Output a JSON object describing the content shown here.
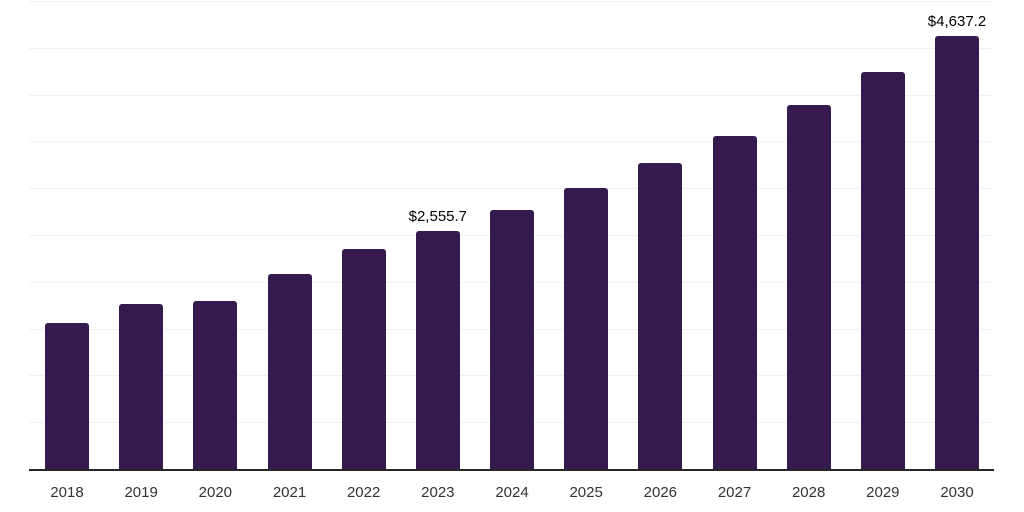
{
  "chart_data": {
    "type": "bar",
    "title": "",
    "xlabel": "",
    "ylabel": "",
    "categories": [
      "2018",
      "2019",
      "2020",
      "2021",
      "2022",
      "2023",
      "2024",
      "2025",
      "2026",
      "2027",
      "2028",
      "2029",
      "2030"
    ],
    "values": [
      1570,
      1775,
      1806,
      2094,
      2360,
      2555.7,
      2778,
      3016,
      3277,
      3569,
      3896,
      4256,
      4637.2
    ],
    "data_labels": [
      "",
      "",
      "",
      "",
      "",
      "$2,555.7",
      "",
      "",
      "",
      "",
      "",
      "",
      "$4,637.2"
    ],
    "ylim": [
      0,
      5000
    ],
    "gridline_step": 500,
    "grid": "horizontal",
    "legend": "none",
    "colors": {
      "bar": "#351A4D",
      "gridline": "#F2F2F2",
      "axis_line": "#262626",
      "tick_label": "#333333",
      "data_label": "#000000",
      "background": "#FFFFFF"
    }
  }
}
